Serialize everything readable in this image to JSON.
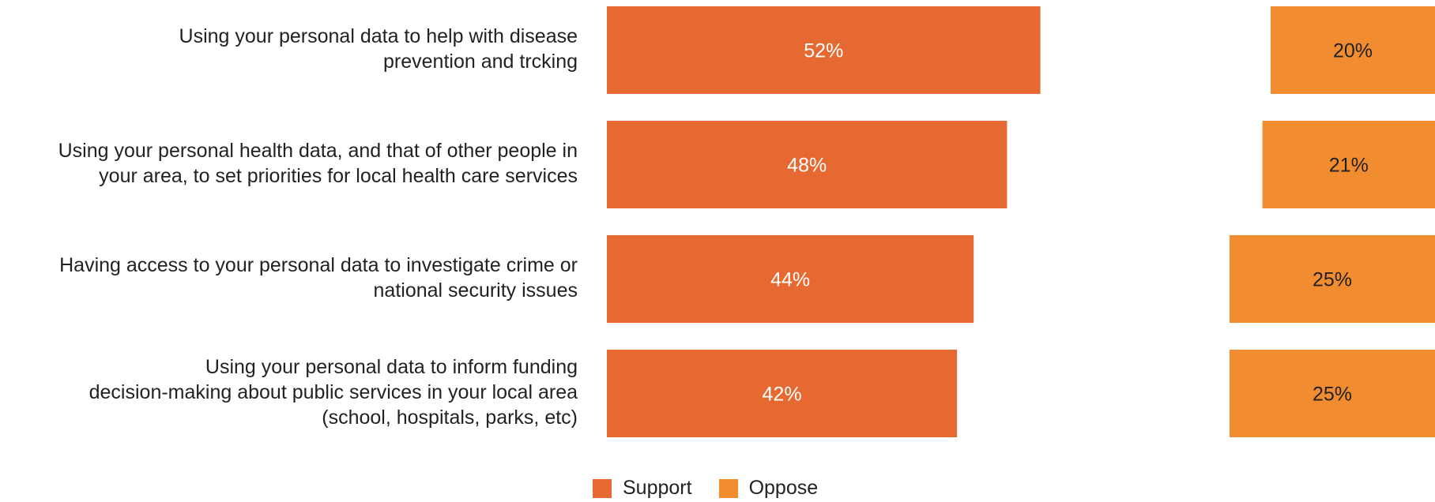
{
  "chart_data": {
    "type": "bar",
    "orientation": "horizontal",
    "categories": [
      "Using your personal data to help with disease prevention and trcking",
      "Using your personal health data, and that of other people in your area, to set priorities for local health care services",
      "Having access to your personal data to investigate crime or national security issues",
      "Using your personal data to inform funding decision-making about public services in your local area (school, hospitals, parks, etc)"
    ],
    "category_lines": [
      [
        "Using your personal data to help with disease",
        "prevention and trcking"
      ],
      [
        "Using your personal health data, and that of other people in",
        "your area, to set priorities for local health care services"
      ],
      [
        "Having access to your personal data to investigate crime or",
        "national security issues"
      ],
      [
        "Using your personal data to inform funding",
        "decision-making about public services in your local area",
        "(school, hospitals, parks, etc)"
      ]
    ],
    "series": [
      {
        "name": "Support",
        "values": [
          52,
          48,
          44,
          42
        ],
        "labels": [
          "52%",
          "48%",
          "44%",
          "42%"
        ],
        "color": "#E76932",
        "label_color": "#FFFFFF"
      },
      {
        "name": "Oppose",
        "values": [
          20,
          21,
          25,
          25
        ],
        "labels": [
          "20%",
          "21%",
          "25%",
          "25%"
        ],
        "color": "#F28C30",
        "label_color": "#222222"
      }
    ],
    "legend": {
      "position": "bottom",
      "items": [
        "Support",
        "Oppose"
      ]
    },
    "grid": false,
    "unit": "%"
  }
}
